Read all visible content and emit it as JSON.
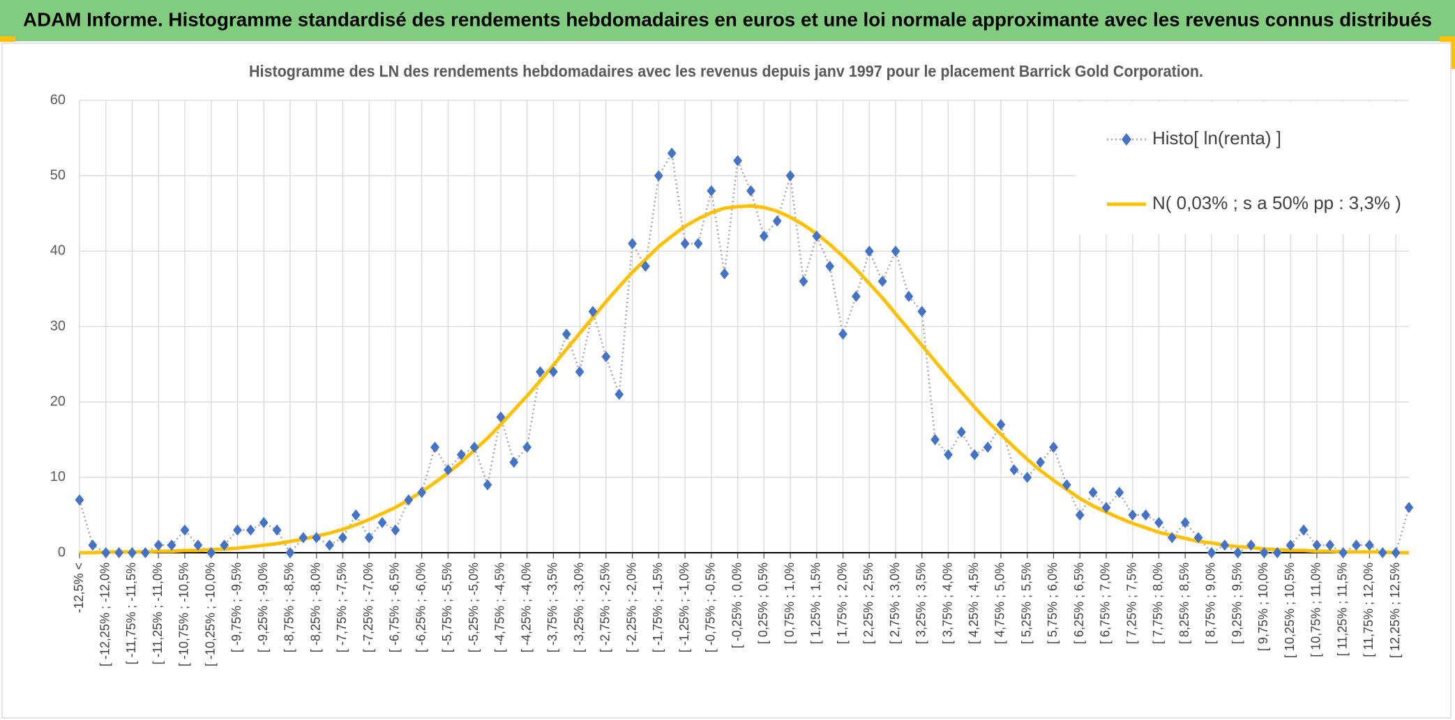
{
  "chart_data": {
    "type": "line",
    "title": "ADAM Informe. Histogramme standardisé des rendements hebdomadaires en euros et une loi normale approximante avec les revenus connus distribués",
    "subtitle": "Histogramme des LN des rendements hebdomadaires avec les revenus depuis janv 1997 pour le placement Barrick  Gold Corporation.",
    "categories": [
      "-12,5% <",
      null,
      "[ -12,25% ; -12,0%",
      null,
      "[ -11,75% ; -11,5%",
      null,
      "[ -11,25% ; -11,0%",
      null,
      "[ -10,75% ; -10,5%",
      null,
      "[ -10,25% ; -10,0%",
      null,
      "[ -9,75% ; -9,5%",
      null,
      "[ -9,25% ; -9,0%",
      null,
      "[ -8,75% ; -8,5%",
      null,
      "[ -8,25% ; -8,0%",
      null,
      "[ -7,75% ; -7,5%",
      null,
      "[ -7,25% ; -7,0%",
      null,
      "[ -6,75% ; -6,5%",
      null,
      "[ -6,25% ; -6,0%",
      null,
      "[ -5,75% ; -5,5%",
      null,
      "[ -5,25% ; -5,0%",
      null,
      "[ -4,75% ; -4,5%",
      null,
      "[ -4,25% ; -4,0%",
      null,
      "[ -3,75% ; -3,5%",
      null,
      "[ -3,25% ; -3,0%",
      null,
      "[ -2,75% ; -2,5%",
      null,
      "[ -2,25% ; -2,0%",
      null,
      "[ -1,75% ; -1,5%",
      null,
      "[ -1,25% ; -1,0%",
      null,
      "[ -0,75% ; -0,5%",
      null,
      "[ -0,25% ; 0,0%",
      null,
      "[ 0,25% ; 0,5%",
      null,
      "[ 0,75% ; 1,0%",
      null,
      "[ 1,25% ; 1,5%",
      null,
      "[ 1,75% ; 2,0%",
      null,
      "[ 2,25% ; 2,5%",
      null,
      "[ 2,75% ; 3,0%",
      null,
      "[ 3,25% ; 3,5%",
      null,
      "[ 3,75% ; 4,0%",
      null,
      "[ 4,25% ; 4,5%",
      null,
      "[ 4,75% ; 5,0%",
      null,
      "[ 5,25% ; 5,5%",
      null,
      "[ 5,75% ; 6,0%",
      null,
      "[ 6,25% ; 6,5%",
      null,
      "[ 6,75% ; 7,0%",
      null,
      "[ 7,25% ; 7,5%",
      null,
      "[ 7,75% ; 8,0%",
      null,
      "[ 8,25% ; 8,5%",
      null,
      "[ 8,75% ; 9,0%",
      null,
      "[ 9,25% ; 9,5%",
      null,
      "[ 9,75% ; 10,0%",
      null,
      "[ 10,25% ; 10,5%",
      null,
      "[ 10,75% ; 11,0%",
      null,
      "[ 11,25% ; 11,5%",
      null,
      "[ 11,75% ; 12,0%",
      null,
      "[ 12,25% ; 12,5%",
      null
    ],
    "series": [
      {
        "name": "Histo[ ln(renta) ]",
        "color": "#4472c4",
        "line_color": "#a5a5a5",
        "values": [
          7,
          1,
          0,
          0,
          0,
          0,
          1,
          1,
          3,
          1,
          0,
          1,
          3,
          3,
          4,
          3,
          0,
          2,
          2,
          1,
          2,
          5,
          2,
          4,
          3,
          7,
          8,
          14,
          11,
          13,
          14,
          9,
          18,
          12,
          14,
          24,
          24,
          29,
          24,
          32,
          26,
          21,
          41,
          38,
          50,
          53,
          41,
          41,
          48,
          37,
          52,
          48,
          42,
          44,
          50,
          36,
          42,
          38,
          29,
          34,
          40,
          36,
          40,
          34,
          32,
          15,
          13,
          16,
          13,
          14,
          17,
          11,
          10,
          12,
          14,
          9,
          5,
          8,
          6,
          8,
          5,
          5,
          4,
          2,
          4,
          2,
          0,
          1,
          0,
          1,
          0,
          0,
          1,
          3,
          1,
          1,
          0,
          1,
          1,
          0,
          0,
          6
        ]
      },
      {
        "name": "N( 0,03% ; s a 50% pp : 3,3% )",
        "color": "#ffc000",
        "values": [
          0.0,
          0.0,
          0.1,
          0.1,
          0.1,
          0.1,
          0.2,
          0.2,
          0.3,
          0.3,
          0.4,
          0.5,
          0.6,
          0.8,
          1.0,
          1.2,
          1.5,
          1.8,
          2.2,
          2.6,
          3.1,
          3.7,
          4.4,
          5.2,
          6.0,
          7.0,
          8.1,
          9.3,
          10.6,
          12.0,
          13.6,
          15.2,
          17.0,
          18.9,
          20.8,
          22.8,
          24.9,
          27.0,
          29.1,
          31.2,
          33.3,
          35.3,
          37.2,
          38.9,
          40.6,
          42.0,
          43.3,
          44.3,
          45.1,
          45.7,
          45.9,
          46.0,
          45.8,
          45.3,
          44.5,
          43.5,
          42.3,
          40.9,
          39.3,
          37.6,
          35.7,
          33.8,
          31.7,
          29.6,
          27.5,
          25.4,
          23.3,
          21.3,
          19.3,
          17.4,
          15.7,
          14.0,
          12.4,
          10.9,
          9.6,
          8.4,
          7.2,
          6.2,
          5.4,
          4.6,
          3.9,
          3.3,
          2.7,
          2.3,
          1.9,
          1.5,
          1.3,
          1.0,
          0.8,
          0.7,
          0.5,
          0.4,
          0.3,
          0.3,
          0.2,
          0.2,
          0.1,
          0.1,
          0.1,
          0.1,
          0.0,
          0.0
        ]
      }
    ],
    "ylim": [
      0,
      60
    ],
    "yticks": [
      0,
      10,
      20,
      30,
      40,
      50,
      60
    ],
    "grid": true,
    "legend": "top-right"
  }
}
